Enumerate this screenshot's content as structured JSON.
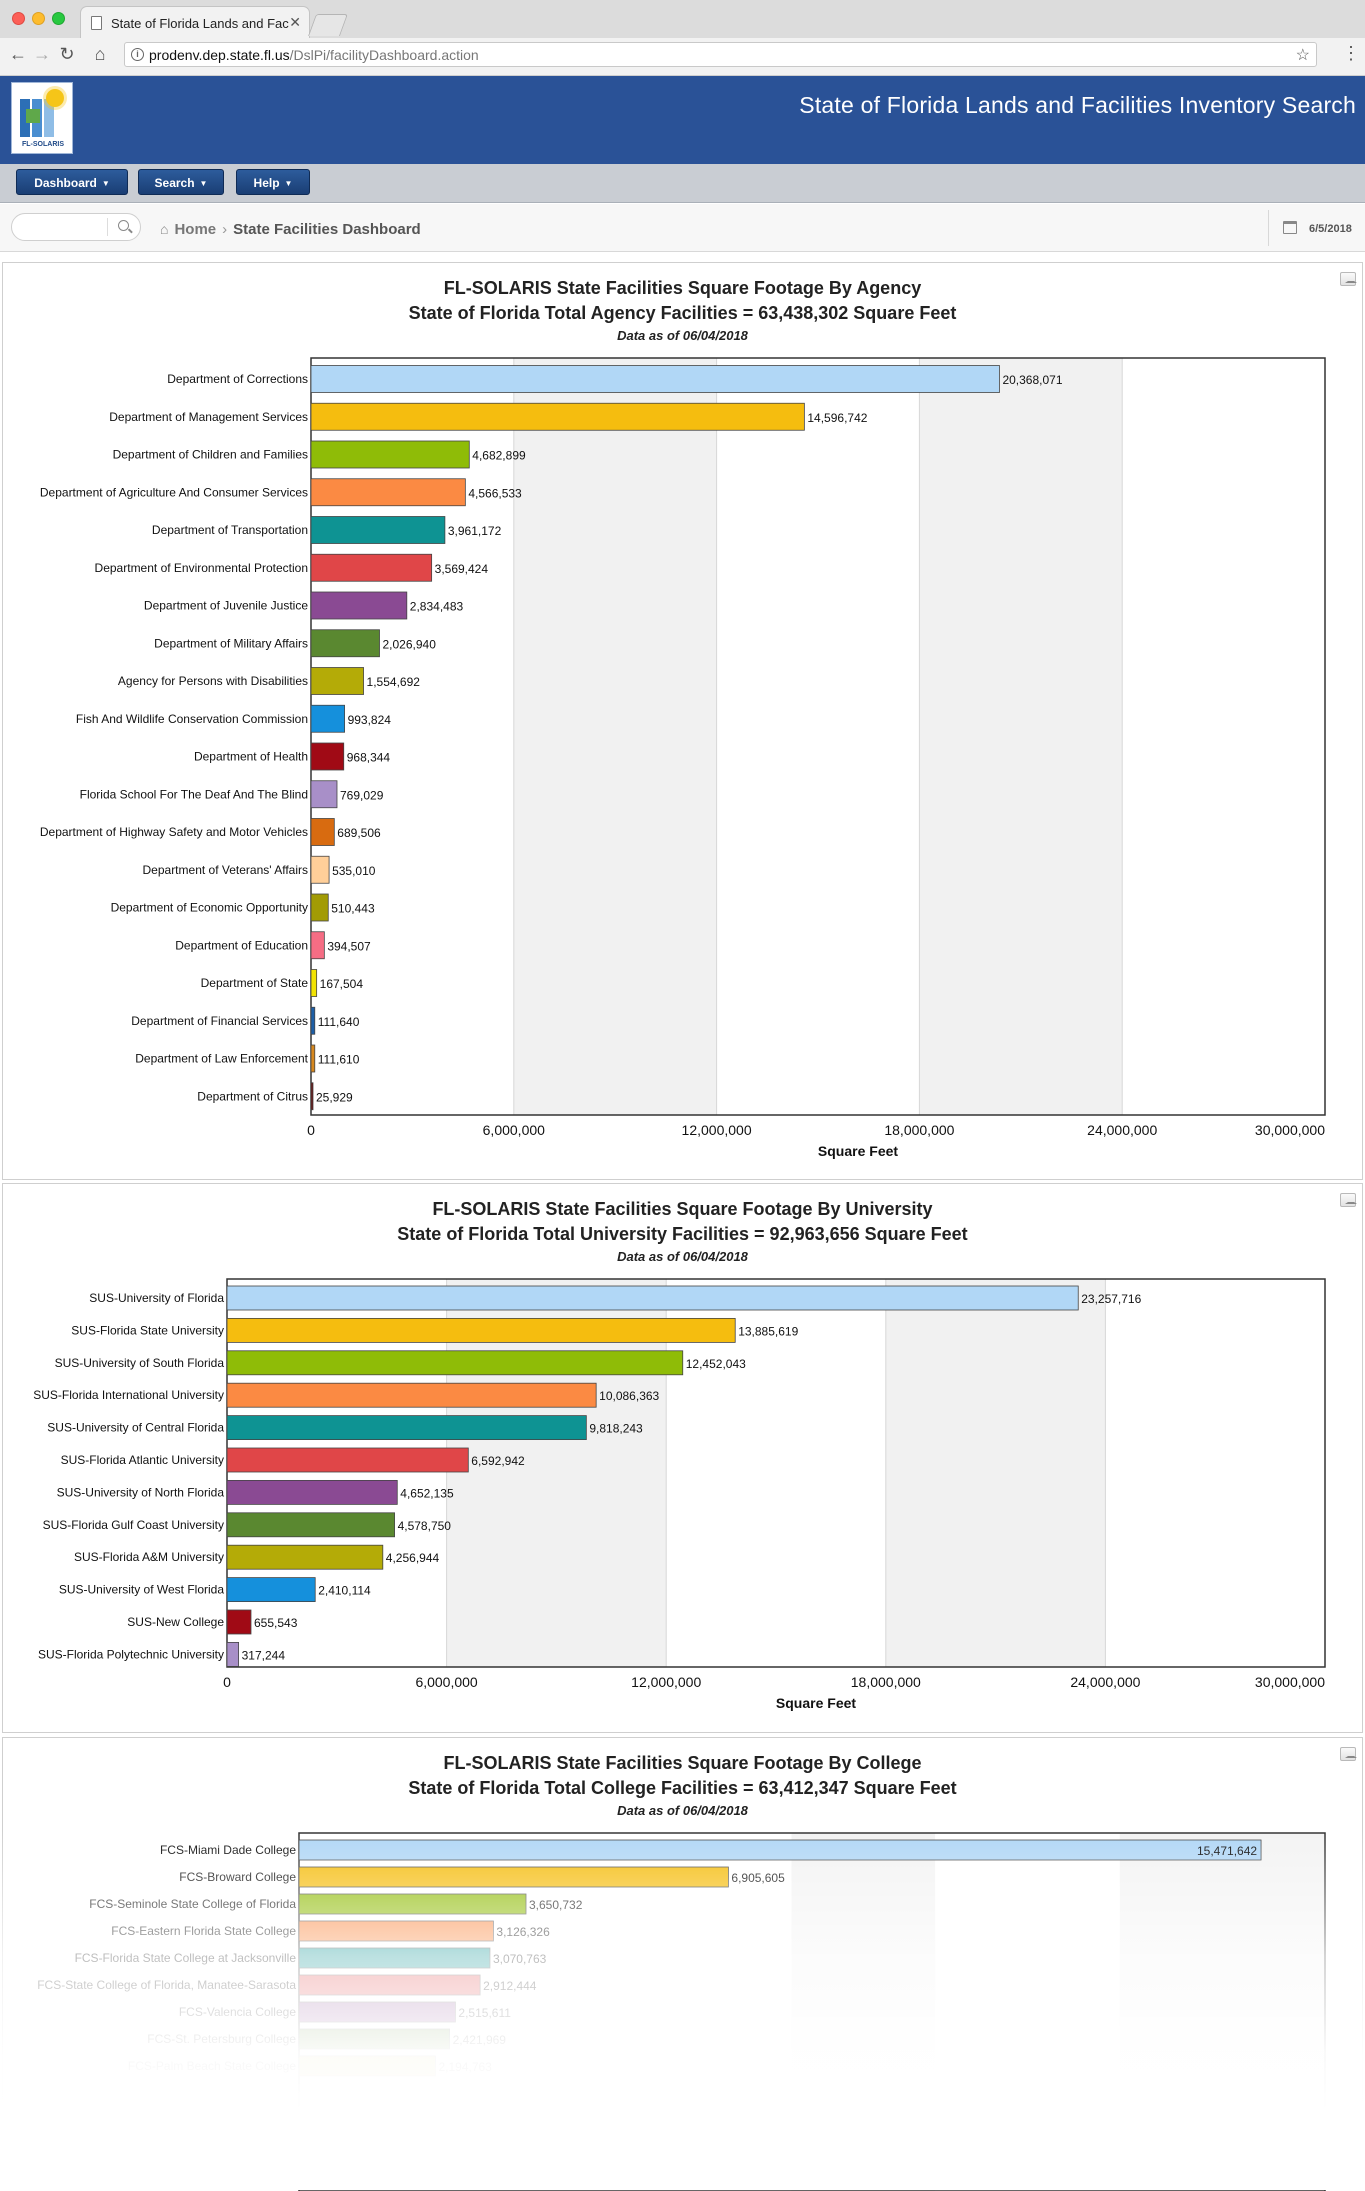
{
  "browser": {
    "tab_title": "State of Florida Lands and Fac",
    "url_host": "prodenv.dep.state.fl.us",
    "url_path": "/DslPi/facilityDashboard.action"
  },
  "header": {
    "logo_text": "FL-SOLARIS",
    "title": "State of Florida Lands and Facilities Inventory Search"
  },
  "toolbar": {
    "dashboard_label": "Dashboard",
    "search_label": "Search",
    "help_label": "Help"
  },
  "breadcrumb": {
    "home": "Home",
    "current": "State Facilities Dashboard",
    "date": "6/5/2018"
  },
  "colors": {
    "header_blue": "#2a5297",
    "palette": [
      "#b1d7f6",
      "#f5bd0f",
      "#8fbc07",
      "#fb8a43",
      "#0e9393",
      "#e04648",
      "#8a4a93",
      "#5a8830",
      "#b4ab07",
      "#1590dc",
      "#a00a15",
      "#a88fc8",
      "#d86b10",
      "#ffcf99",
      "#a29b05",
      "#f56d84",
      "#f2e303",
      "#1d5fa7",
      "#d7881e",
      "#6b1313"
    ]
  },
  "chart_data": [
    {
      "type": "bar",
      "orientation": "horizontal",
      "title": "FL-SOLARIS State Facilities Square Footage By Agency",
      "subtitle": "State of Florida Total Agency Facilities = 63,438,302 Square Feet",
      "note": "Data as of 06/04/2018",
      "xlabel": "Square Feet",
      "xlim": [
        0,
        30000000
      ],
      "ticks": [
        "0",
        "6,000,000",
        "12,000,000",
        "18,000,000",
        "24,000,000",
        "30,000,000"
      ],
      "categories": [
        "Department of Corrections",
        "Department of Management Services",
        "Department of Children and Families",
        "Department of Agriculture And Consumer Services",
        "Department of Transportation",
        "Department of Environmental Protection",
        "Department of Juvenile Justice",
        "Department of Military Affairs",
        "Agency for Persons with Disabilities",
        "Fish And Wildlife Conservation Commission",
        "Department of Health",
        "Florida School For The Deaf And The Blind",
        "Department of Highway Safety and Motor Vehicles",
        "Department of Veterans' Affairs",
        "Department of Economic Opportunity",
        "Department of Education",
        "Department of State",
        "Department of Financial Services",
        "Department of Law Enforcement",
        "Department of Citrus"
      ],
      "values": [
        20368071,
        14596742,
        4682899,
        4566533,
        3961172,
        3569424,
        2834483,
        2026940,
        1554692,
        993824,
        968344,
        769029,
        689506,
        535010,
        510443,
        394507,
        167504,
        111640,
        111610,
        25929
      ],
      "labels": [
        "20,368,071",
        "14,596,742",
        "4,682,899",
        "4,566,533",
        "3,961,172",
        "3,569,424",
        "2,834,483",
        "2,026,940",
        "1,554,692",
        "993,824",
        "968,344",
        "769,029",
        "689,506",
        "535,010",
        "510,443",
        "394,507",
        "167,504",
        "111,640",
        "111,610",
        "25,929"
      ]
    },
    {
      "type": "bar",
      "orientation": "horizontal",
      "title": "FL-SOLARIS State Facilities Square Footage By University",
      "subtitle": "State of Florida Total University Facilities = 92,963,656 Square Feet",
      "note": "Data as of 06/04/2018",
      "xlabel": "Square Feet",
      "xlim": [
        0,
        30000000
      ],
      "ticks": [
        "0",
        "6,000,000",
        "12,000,000",
        "18,000,000",
        "24,000,000",
        "30,000,000"
      ],
      "categories": [
        "SUS-University of Florida",
        "SUS-Florida State University",
        "SUS-University of South Florida",
        "SUS-Florida International University",
        "SUS-University of Central Florida",
        "SUS-Florida Atlantic University",
        "SUS-University of North Florida",
        "SUS-Florida Gulf Coast University",
        "SUS-Florida A&M University",
        "SUS-University of West Florida",
        "SUS-New College",
        "SUS-Florida Polytechnic University"
      ],
      "values": [
        23257716,
        13885619,
        12452043,
        10086363,
        9818243,
        6592942,
        4652135,
        4578750,
        4256944,
        2410114,
        655543,
        317244
      ],
      "labels": [
        "23,257,716",
        "13,885,619",
        "12,452,043",
        "10,086,363",
        "9,818,243",
        "6,592,942",
        "4,652,135",
        "4,578,750",
        "4,256,944",
        "2,410,114",
        "655,543",
        "317,244"
      ]
    },
    {
      "type": "bar",
      "orientation": "horizontal",
      "title": "FL-SOLARIS State Facilities Square Footage By College",
      "subtitle": "State of Florida Total College Facilities = 63,412,347 Square Feet",
      "note": "Data as of 06/04/2018",
      "xlabel": "",
      "xlim": [
        0,
        16500000
      ],
      "categories": [
        "FCS-Miami Dade College",
        "FCS-Broward College",
        "FCS-Seminole State College of Florida",
        "FCS-Eastern Florida State College",
        "FCS-Florida State College at Jacksonville",
        "FCS-State College of Florida, Manatee-Sarasota",
        "FCS-Valencia College",
        "FCS-St. Petersburg College",
        "FCS-Palm Beach State College"
      ],
      "values": [
        15471642,
        6905605,
        3650732,
        3126326,
        3070763,
        2912444,
        2515611,
        2421969,
        2194763
      ],
      "labels": [
        "15,471,642",
        "6,905,605",
        "3,650,732",
        "3,126,326",
        "3,070,763",
        "2,912,444",
        "2,515,611",
        "2,421,969",
        "2,194,763"
      ]
    }
  ]
}
